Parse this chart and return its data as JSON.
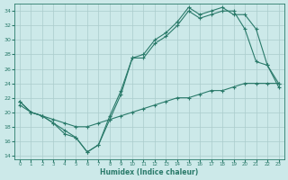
{
  "xlabel": "Humidex (Indice chaleur)",
  "background_color": "#cce9e9",
  "grid_color": "#aacccc",
  "line_color": "#2a7a6a",
  "xlim": [
    -0.5,
    23.5
  ],
  "ylim": [
    13.5,
    35.0
  ],
  "yticks": [
    14,
    16,
    18,
    20,
    22,
    24,
    26,
    28,
    30,
    32,
    34
  ],
  "xticks": [
    0,
    1,
    2,
    3,
    4,
    5,
    6,
    7,
    8,
    9,
    10,
    11,
    12,
    13,
    14,
    15,
    16,
    17,
    18,
    19,
    20,
    21,
    22,
    23
  ],
  "series_data": [
    {
      "x": [
        0,
        1,
        2,
        3,
        4,
        5,
        6,
        7,
        8,
        9,
        10,
        11,
        12,
        13,
        14,
        15,
        16,
        17,
        18,
        19,
        20,
        21,
        22,
        23
      ],
      "y": [
        21.5,
        20.0,
        19.5,
        18.5,
        17.0,
        16.5,
        14.5,
        15.5,
        19.0,
        22.5,
        27.5,
        27.5,
        29.5,
        30.5,
        32.0,
        34.0,
        33.0,
        33.5,
        34.0,
        34.0,
        31.5,
        27.0,
        26.5,
        24.0
      ]
    },
    {
      "x": [
        0,
        1,
        2,
        3,
        4,
        5,
        6,
        7,
        8,
        9,
        10,
        11,
        12,
        13,
        14,
        15,
        16,
        17,
        18,
        19,
        20,
        21,
        22,
        23
      ],
      "y": [
        21.5,
        20.0,
        19.5,
        18.5,
        17.5,
        16.5,
        14.5,
        15.5,
        19.5,
        23.0,
        27.5,
        28.0,
        30.0,
        31.0,
        32.5,
        34.5,
        33.5,
        34.0,
        34.5,
        33.5,
        33.5,
        31.5,
        26.5,
        23.5
      ]
    },
    {
      "x": [
        0,
        1,
        2,
        3,
        4,
        5,
        6,
        7,
        8,
        9,
        10,
        11,
        12,
        13,
        14,
        15,
        16,
        17,
        18,
        19,
        20,
        21,
        22,
        23
      ],
      "y": [
        21.0,
        20.0,
        19.5,
        19.0,
        18.5,
        18.0,
        18.0,
        18.5,
        19.0,
        19.5,
        20.0,
        20.5,
        21.0,
        21.5,
        22.0,
        22.0,
        22.5,
        23.0,
        23.0,
        23.5,
        24.0,
        24.0,
        24.0,
        24.0
      ]
    }
  ]
}
